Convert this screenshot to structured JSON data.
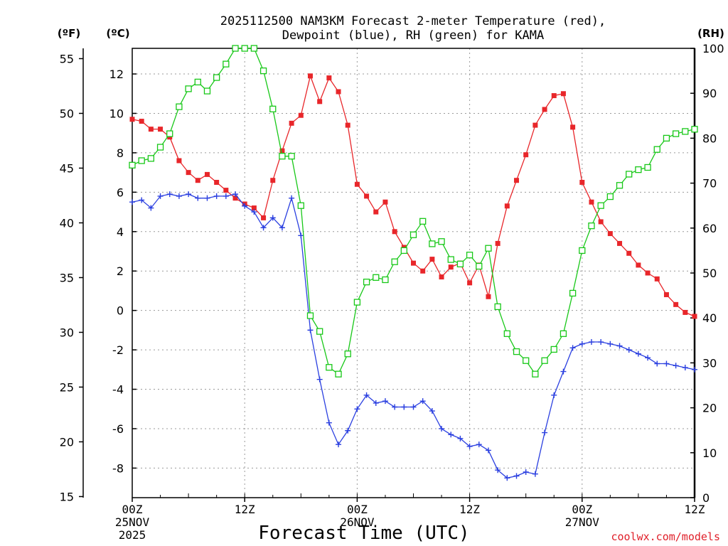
{
  "chart_data": {
    "type": "line",
    "title_line1": "2025112500 NAM3KM Forecast 2-meter Temperature (red),",
    "title_line2": "Dewpoint (blue), RH (green) for KAMA",
    "xlabel": "Forecast Time (UTC)",
    "credit": "coolwx.com/models",
    "units": {
      "fahrenheit": "(ºF)",
      "celsius": "(ºC)",
      "rh": "(RH)"
    },
    "x_range_hours": [
      0,
      60
    ],
    "celsius_range": [
      -9.5,
      13.3
    ],
    "rh_range": [
      0,
      100
    ],
    "fahrenheit_ticks": [
      "15",
      "20",
      "25",
      "30",
      "35",
      "40",
      "45",
      "50",
      "55"
    ],
    "celsius_ticks": [
      "-8",
      "-6",
      "-4",
      "-2",
      "0",
      "2",
      "4",
      "6",
      "8",
      "10",
      "12"
    ],
    "rh_ticks": [
      "0",
      "10",
      "20",
      "30",
      "40",
      "50",
      "60",
      "70",
      "80",
      "90",
      "100"
    ],
    "x_ticks": [
      {
        "hour": 0,
        "label": "00Z",
        "date": "25NOV",
        "year": "2025"
      },
      {
        "hour": 12,
        "label": "12Z",
        "date": "",
        "year": ""
      },
      {
        "hour": 24,
        "label": "00Z",
        "date": "26NOV",
        "year": ""
      },
      {
        "hour": 36,
        "label": "12Z",
        "date": "",
        "year": ""
      },
      {
        "hour": 48,
        "label": "00Z",
        "date": "27NOV",
        "year": ""
      },
      {
        "hour": 60,
        "label": "12Z",
        "date": "",
        "year": ""
      }
    ],
    "hours": [
      0,
      1,
      2,
      3,
      4,
      5,
      6,
      7,
      8,
      9,
      10,
      11,
      12,
      13,
      14,
      15,
      16,
      17,
      18,
      19,
      20,
      21,
      22,
      23,
      24,
      25,
      26,
      27,
      28,
      29,
      30,
      31,
      32,
      33,
      34,
      35,
      36,
      37,
      38,
      39,
      40,
      41,
      42,
      43,
      44,
      45,
      46,
      47,
      48,
      49,
      50,
      51,
      52,
      53,
      54,
      55,
      56,
      57,
      58,
      59,
      60
    ],
    "series": [
      {
        "name": "Temperature",
        "unit": "C",
        "color": "#e8262a",
        "marker": "filled-square",
        "values": [
          9.7,
          9.6,
          9.2,
          9.2,
          8.8,
          7.6,
          7.0,
          6.6,
          6.9,
          6.5,
          6.1,
          5.7,
          5.4,
          5.2,
          4.7,
          6.6,
          8.1,
          9.5,
          9.9,
          11.9,
          10.6,
          11.8,
          11.1,
          9.4,
          6.4,
          5.8,
          5.0,
          5.5,
          4.0,
          3.2,
          2.4,
          2.0,
          2.6,
          1.7,
          2.2,
          2.4,
          1.4,
          2.3,
          0.7,
          3.4,
          5.3,
          6.6,
          7.9,
          9.4,
          10.2,
          10.9,
          11.0,
          9.3,
          6.5,
          5.5,
          4.5,
          3.9,
          3.4,
          2.9,
          2.3,
          1.9,
          1.6,
          0.8,
          0.3,
          -0.1,
          -0.3
        ]
      },
      {
        "name": "Dewpoint",
        "unit": "C",
        "color": "#2a3fe0",
        "marker": "plus",
        "values": [
          5.5,
          5.6,
          5.2,
          5.8,
          5.9,
          5.8,
          5.9,
          5.7,
          5.7,
          5.8,
          5.8,
          5.9,
          5.3,
          5.0,
          4.2,
          4.7,
          4.2,
          5.7,
          3.8,
          -1.0,
          -3.5,
          -5.7,
          -6.8,
          -6.1,
          -5.0,
          -4.3,
          -4.7,
          -4.6,
          -4.9,
          -4.9,
          -4.9,
          -4.6,
          -5.1,
          -6.0,
          -6.3,
          -6.5,
          -6.9,
          -6.8,
          -7.1,
          -8.1,
          -8.5,
          -8.4,
          -8.2,
          -8.3,
          -6.2,
          -4.3,
          -3.1,
          -1.9,
          -1.7,
          -1.6,
          -1.6,
          -1.7,
          -1.8,
          -2.0,
          -2.2,
          -2.4,
          -2.7,
          -2.7,
          -2.8,
          -2.9,
          -3.0
        ]
      },
      {
        "name": "RH",
        "unit": "%",
        "color": "#18c818",
        "marker": "open-square",
        "values": [
          74,
          75,
          75.5,
          78,
          81,
          87,
          91,
          92.5,
          90.5,
          93.5,
          96.5,
          100,
          100,
          100,
          95,
          86.5,
          76,
          76,
          65,
          40.5,
          37,
          29,
          27.5,
          32,
          43.5,
          48,
          49,
          48.5,
          52.5,
          55,
          58.5,
          61.5,
          56.5,
          57,
          53,
          52,
          54,
          51.5,
          55.5,
          42.5,
          36.5,
          32.5,
          30.5,
          27.5,
          30.5,
          33,
          36.5,
          45.5,
          55,
          60.5,
          65,
          67,
          69.5,
          72,
          73,
          73.5,
          77.5,
          80,
          81,
          81.5,
          82
        ]
      }
    ]
  }
}
